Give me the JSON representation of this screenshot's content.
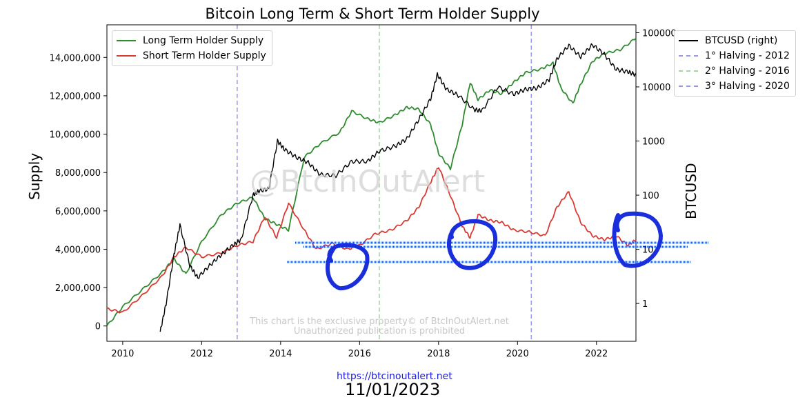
{
  "title": "Bitcoin Long Term & Short Term Holder Supply",
  "ylabel": "Supply",
  "y2label": "BTCUSD",
  "watermark": "@BtcInOutAlert",
  "notice_line1": "This chart is the exclusive property© of BtcInOutAlert.net",
  "notice_line2": "Unauthorized publication is prohibited",
  "url": "https://btcinoutalert.net",
  "date": "11/01/2023",
  "legend_left": [
    {
      "label": "Long Term Holder Supply",
      "color": "#2e8b2e"
    },
    {
      "label": "Short Term Holder Supply",
      "color": "#d93a32"
    }
  ],
  "legend_right": [
    {
      "label": "BTCUSD (right)",
      "color": "#000000",
      "style": "solid"
    },
    {
      "label": "1° Halving - 2012",
      "color": "#9999ee",
      "style": "dashed"
    },
    {
      "label": "2° Halving - 2016",
      "color": "#9fd99f",
      "style": "dashed"
    },
    {
      "label": "3° Halving - 2020",
      "color": "#9999ee",
      "style": "dashed"
    }
  ],
  "chart_data": {
    "type": "line",
    "xlim": [
      2009.6,
      2023.0
    ],
    "ylim": [
      -800000,
      15700000
    ],
    "y2lim_log": [
      0.2,
      140000
    ],
    "x_ticks": [
      2010,
      2012,
      2014,
      2016,
      2018,
      2020,
      2022
    ],
    "y_ticks": [
      0,
      2000000,
      4000000,
      6000000,
      8000000,
      10000000,
      12000000,
      14000000
    ],
    "y_tick_labels": [
      "0",
      "2,000,000",
      "4,000,000",
      "6,000,000",
      "8,000,000",
      "10,000,000",
      "12,000,000",
      "14,000,000"
    ],
    "y2_ticks": [
      1,
      10,
      100,
      1000,
      10000,
      100000
    ],
    "y2_tick_labels": [
      "1",
      "10",
      "100",
      "1000",
      "10000",
      "100000"
    ],
    "halvings": [
      {
        "x": 2012.9,
        "color": "#9999ee"
      },
      {
        "x": 2016.5,
        "color": "#9fd99f"
      },
      {
        "x": 2020.35,
        "color": "#9999ee"
      }
    ],
    "series": [
      {
        "name": "Long Term Holder Supply",
        "axis": "left",
        "color": "#2e8b2e",
        "x": [
          2009.6,
          2010.0,
          2010.5,
          2011.0,
          2011.3,
          2011.6,
          2012.0,
          2012.5,
          2012.9,
          2013.3,
          2013.6,
          2013.9,
          2014.2,
          2014.6,
          2015.0,
          2015.5,
          2015.8,
          2016.2,
          2016.5,
          2016.9,
          2017.2,
          2017.5,
          2017.8,
          2018.0,
          2018.3,
          2018.6,
          2018.8,
          2019.0,
          2019.3,
          2019.6,
          2019.9,
          2020.2,
          2020.6,
          2020.9,
          2021.1,
          2021.4,
          2021.6,
          2021.9,
          2022.2,
          2022.6,
          2023.0
        ],
        "values": [
          0,
          1000000,
          1900000,
          2800000,
          3500000,
          2700000,
          4400000,
          5800000,
          6400000,
          6700000,
          5600000,
          5300000,
          5000000,
          8800000,
          9500000,
          10100000,
          11200000,
          10800000,
          10600000,
          11000000,
          11400000,
          11300000,
          10500000,
          9000000,
          8200000,
          10500000,
          12700000,
          11800000,
          12300000,
          12100000,
          12700000,
          13200000,
          13400000,
          13700000,
          12400000,
          11600000,
          12600000,
          13800000,
          14200000,
          14400000,
          15000000
        ]
      },
      {
        "name": "Short Term Holder Supply",
        "axis": "left",
        "color": "#d93a32",
        "x": [
          2009.6,
          2010.0,
          2010.5,
          2011.0,
          2011.3,
          2011.6,
          2012.0,
          2012.5,
          2012.9,
          2013.3,
          2013.6,
          2013.9,
          2014.2,
          2014.6,
          2014.9,
          2015.3,
          2015.7,
          2016.0,
          2016.4,
          2016.8,
          2017.2,
          2017.5,
          2017.8,
          2018.0,
          2018.3,
          2018.6,
          2018.8,
          2019.0,
          2019.3,
          2019.6,
          2019.9,
          2020.3,
          2020.7,
          2021.0,
          2021.3,
          2021.6,
          2021.9,
          2022.2,
          2022.5,
          2022.8,
          2023.0
        ],
        "values": [
          900000,
          700000,
          1600000,
          2600000,
          3600000,
          4100000,
          3600000,
          3800000,
          4200000,
          4400000,
          5700000,
          4600000,
          6400000,
          5000000,
          4000000,
          4300000,
          4000000,
          4200000,
          4800000,
          5000000,
          5500000,
          6200000,
          7500000,
          8300000,
          6800000,
          5200000,
          4600000,
          5800000,
          5500000,
          5400000,
          5000000,
          4900000,
          4700000,
          6200000,
          7000000,
          5400000,
          4700000,
          4500000,
          4700000,
          4200000,
          4500000
        ]
      },
      {
        "name": "BTCUSD (right)",
        "axis": "right",
        "color": "#000000",
        "x": [
          2010.95,
          2011.1,
          2011.3,
          2011.45,
          2011.7,
          2011.9,
          2012.2,
          2012.5,
          2012.8,
          2013.0,
          2013.3,
          2013.45,
          2013.7,
          2013.92,
          2014.1,
          2014.4,
          2014.7,
          2015.0,
          2015.4,
          2015.8,
          2016.2,
          2016.5,
          2016.9,
          2017.2,
          2017.5,
          2017.8,
          2017.97,
          2018.2,
          2018.5,
          2018.9,
          2019.1,
          2019.5,
          2019.9,
          2020.2,
          2020.5,
          2020.8,
          2021.0,
          2021.3,
          2021.6,
          2021.9,
          2022.2,
          2022.5,
          2022.8,
          2023.0
        ],
        "values": [
          0.3,
          1.0,
          8,
          28,
          5,
          3,
          5,
          8,
          12,
          15,
          100,
          120,
          130,
          1000,
          700,
          500,
          400,
          240,
          230,
          420,
          420,
          650,
          800,
          1100,
          2500,
          6000,
          17000,
          9000,
          7000,
          3800,
          3600,
          10000,
          7300,
          9000,
          9500,
          13500,
          33000,
          58000,
          36000,
          60000,
          40000,
          21000,
          19000,
          16600
        ]
      }
    ]
  },
  "annotations": [
    {
      "type": "scribble-circle",
      "label": "circle-2015"
    },
    {
      "type": "scribble-circle",
      "label": "circle-2018"
    },
    {
      "type": "scribble-circle",
      "label": "circle-2022"
    },
    {
      "type": "scribble-line",
      "label": "line-upper"
    },
    {
      "type": "scribble-line",
      "label": "line-middle"
    },
    {
      "type": "scribble-line",
      "label": "line-lower"
    }
  ]
}
